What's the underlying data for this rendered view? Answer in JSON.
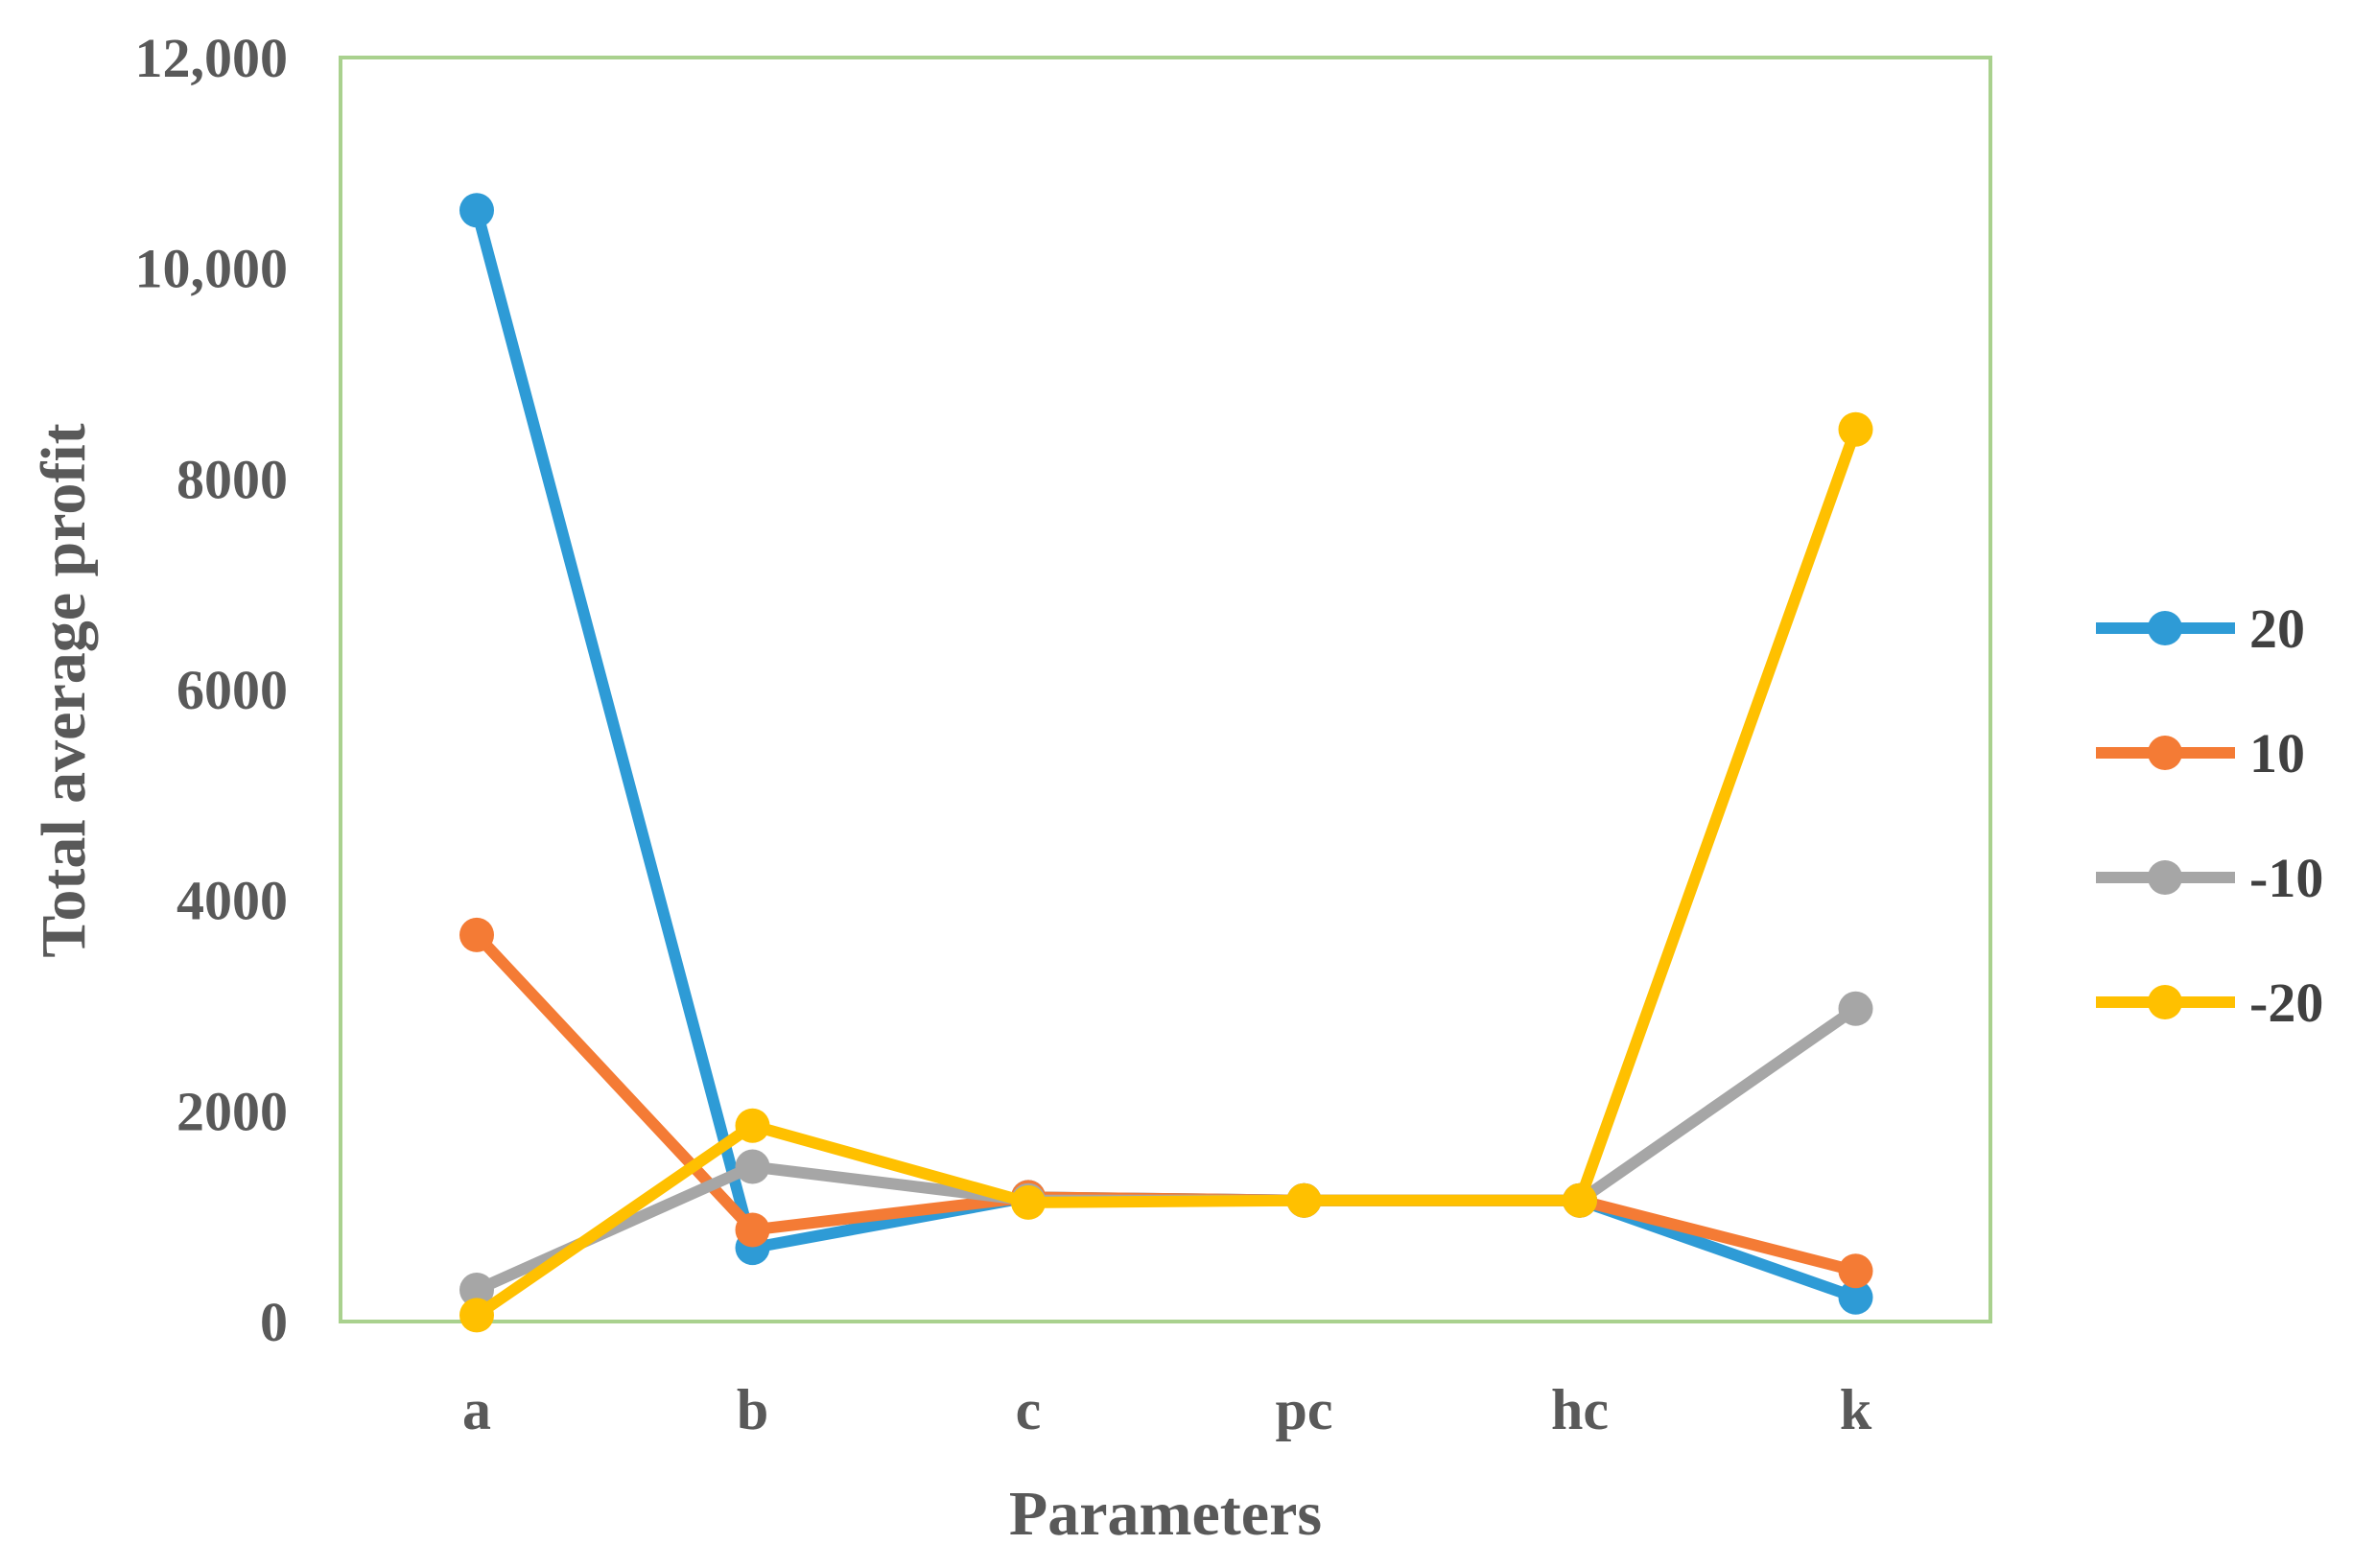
{
  "chart_data": {
    "type": "line",
    "categories": [
      "a",
      "b",
      "c",
      "pc",
      "hc",
      "k"
    ],
    "xlabel": "Parameters",
    "ylabel": "Total average profit",
    "ylim": [
      0,
      12000
    ],
    "yticks": [
      0,
      2000,
      4000,
      6000,
      8000,
      10000,
      12000
    ],
    "ytick_labels": [
      "0",
      "2000",
      "4000",
      "6000",
      "8000",
      "10,000",
      "12,000"
    ],
    "grid": false,
    "legend_position": "right",
    "series": [
      {
        "name": "20",
        "color": "#2E9BD6",
        "values": [
          10550,
          700,
          1180,
          1150,
          1150,
          230
        ]
      },
      {
        "name": "10",
        "color": "#F47B35",
        "values": [
          3670,
          870,
          1180,
          1150,
          1150,
          480
        ]
      },
      {
        "name": "-10",
        "color": "#A6A6A6",
        "values": [
          300,
          1470,
          1150,
          1150,
          1150,
          2970
        ]
      },
      {
        "name": "-20",
        "color": "#FFC000",
        "values": [
          60,
          1860,
          1130,
          1150,
          1150,
          8470
        ]
      }
    ],
    "frame_color": "#A9D18E"
  }
}
